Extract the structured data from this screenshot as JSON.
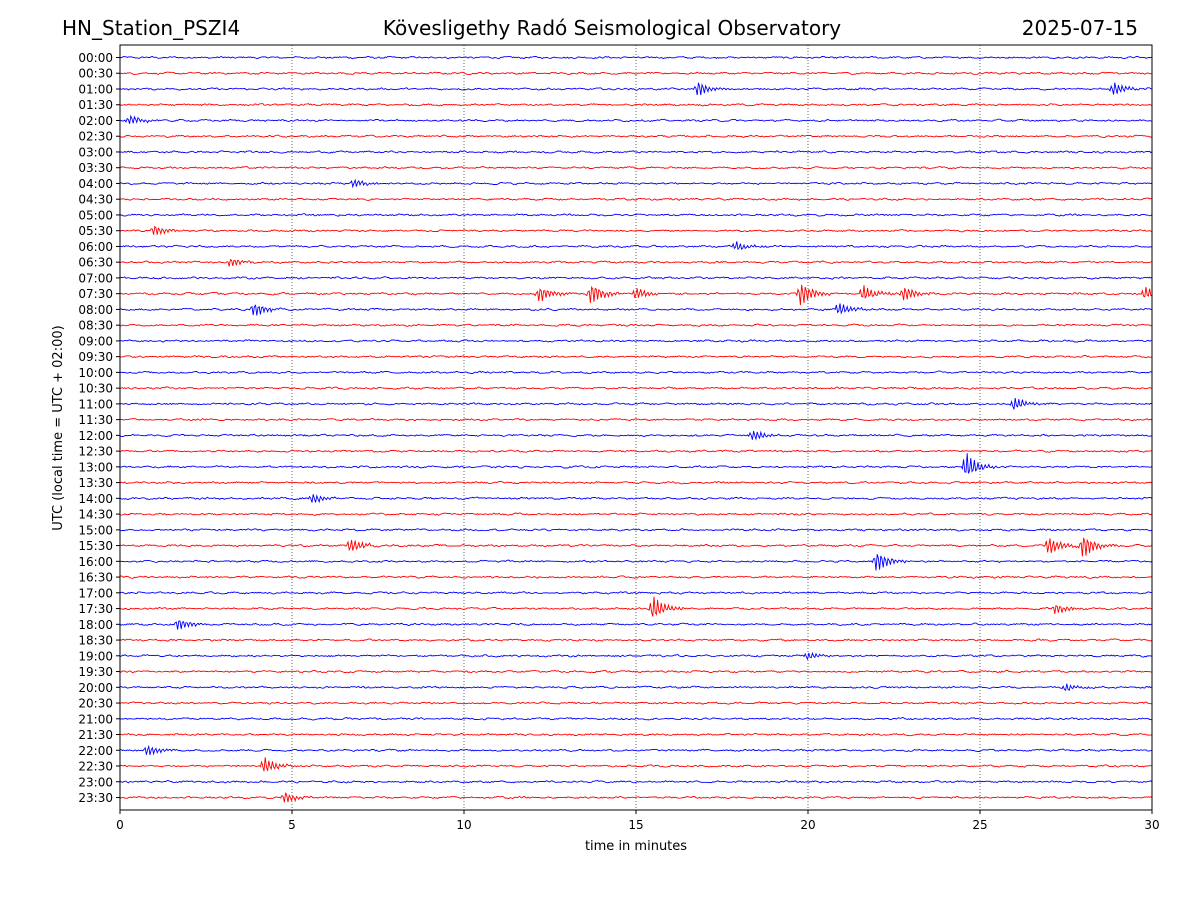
{
  "header": {
    "station": "HN_Station_PSZI4",
    "observatory": "Kövesligethy Radó Seismological Observatory",
    "date": "2025-07-15"
  },
  "chart_data": {
    "type": "line",
    "title": "Kövesligethy Radó Seismological Observatory",
    "xlabel": "time in minutes",
    "ylabel": "UTC (local time = UTC + 02:00)",
    "xlim": [
      0,
      30
    ],
    "x_ticks": [
      0,
      5,
      10,
      15,
      20,
      25,
      30
    ],
    "vertical_gridlines": [
      5,
      10,
      15,
      20,
      25
    ],
    "grid": "dotted vertical lines",
    "row_labels": [
      "00:00",
      "00:30",
      "01:00",
      "01:30",
      "02:00",
      "02:30",
      "03:00",
      "03:30",
      "04:00",
      "04:30",
      "05:00",
      "05:30",
      "06:00",
      "06:30",
      "07:00",
      "07:30",
      "08:00",
      "08:30",
      "09:00",
      "09:30",
      "10:00",
      "10:30",
      "11:00",
      "11:30",
      "12:00",
      "12:30",
      "13:00",
      "13:30",
      "14:00",
      "14:30",
      "15:00",
      "15:30",
      "16:00",
      "16:30",
      "17:00",
      "17:30",
      "18:00",
      "18:30",
      "19:00",
      "19:30",
      "20:00",
      "20:30",
      "21:00",
      "21:30",
      "22:00",
      "22:30",
      "23:00",
      "23:30"
    ],
    "colors": {
      "on_the_hour": "#0000ff",
      "half_hour": "#ff0000"
    },
    "events": [
      {
        "row": "01:00",
        "minute": 16.8,
        "amplitude": 0.55
      },
      {
        "row": "01:00",
        "minute": 28.9,
        "amplitude": 0.5
      },
      {
        "row": "02:00",
        "minute": 0.3,
        "amplitude": 0.35
      },
      {
        "row": "04:00",
        "minute": 6.8,
        "amplitude": 0.3
      },
      {
        "row": "05:30",
        "minute": 1.0,
        "amplitude": 0.4
      },
      {
        "row": "06:00",
        "minute": 17.9,
        "amplitude": 0.35
      },
      {
        "row": "06:30",
        "minute": 3.2,
        "amplitude": 0.35
      },
      {
        "row": "07:30",
        "minute": 12.2,
        "amplitude": 0.6
      },
      {
        "row": "07:30",
        "minute": 13.7,
        "amplitude": 0.8
      },
      {
        "row": "07:30",
        "minute": 15.0,
        "amplitude": 0.45
      },
      {
        "row": "07:30",
        "minute": 19.8,
        "amplitude": 0.9
      },
      {
        "row": "07:30",
        "minute": 21.6,
        "amplitude": 0.6
      },
      {
        "row": "07:30",
        "minute": 22.8,
        "amplitude": 0.55
      },
      {
        "row": "07:30",
        "minute": 29.8,
        "amplitude": 0.45
      },
      {
        "row": "08:00",
        "minute": 3.9,
        "amplitude": 0.55
      },
      {
        "row": "08:00",
        "minute": 20.9,
        "amplitude": 0.5
      },
      {
        "row": "11:00",
        "minute": 26.0,
        "amplitude": 0.5
      },
      {
        "row": "12:00",
        "minute": 18.4,
        "amplitude": 0.4
      },
      {
        "row": "13:00",
        "minute": 24.6,
        "amplitude": 1.0
      },
      {
        "row": "14:00",
        "minute": 5.6,
        "amplitude": 0.35
      },
      {
        "row": "15:30",
        "minute": 6.7,
        "amplitude": 0.55
      },
      {
        "row": "15:30",
        "minute": 27.0,
        "amplitude": 0.7
      },
      {
        "row": "15:30",
        "minute": 28.0,
        "amplitude": 0.9
      },
      {
        "row": "16:00",
        "minute": 22.0,
        "amplitude": 0.8
      },
      {
        "row": "17:30",
        "minute": 15.5,
        "amplitude": 0.9
      },
      {
        "row": "17:30",
        "minute": 27.2,
        "amplitude": 0.4
      },
      {
        "row": "18:00",
        "minute": 1.7,
        "amplitude": 0.45
      },
      {
        "row": "19:00",
        "minute": 20.0,
        "amplitude": 0.3
      },
      {
        "row": "20:00",
        "minute": 27.5,
        "amplitude": 0.3
      },
      {
        "row": "22:00",
        "minute": 0.8,
        "amplitude": 0.4
      },
      {
        "row": "22:30",
        "minute": 4.2,
        "amplitude": 0.6
      },
      {
        "row": "23:30",
        "minute": 4.8,
        "amplitude": 0.4
      }
    ]
  }
}
